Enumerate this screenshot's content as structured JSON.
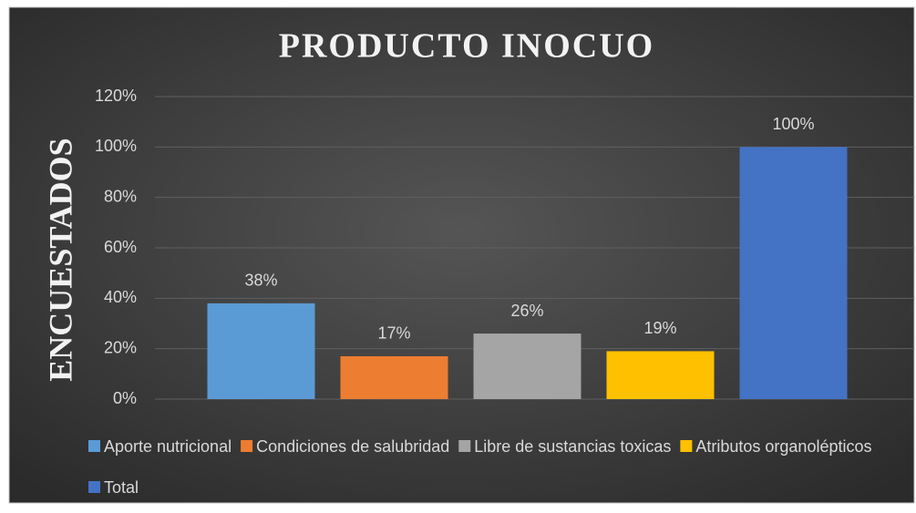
{
  "chart_data": {
    "type": "bar",
    "title": "PRODUCTO INOCUO",
    "y_label": "ENCUESTADOS",
    "series": [
      {
        "name": "Aporte nutricional",
        "color": "#5b9bd5",
        "values": [
          38
        ],
        "value_labels": [
          "38%"
        ]
      },
      {
        "name": "Condiciones de salubridad",
        "color": "#ed7d31",
        "values": [
          17
        ],
        "value_labels": [
          "17%"
        ]
      },
      {
        "name": "Libre de sustancias toxicas",
        "color": "#a5a5a5",
        "values": [
          26
        ],
        "value_labels": [
          "26%"
        ]
      },
      {
        "name": "Atributos organolépticos",
        "color": "#ffc000",
        "values": [
          19
        ],
        "value_labels": [
          "19%"
        ]
      },
      {
        "name": "Total",
        "color": "#4472c4",
        "values": [
          100
        ],
        "value_labels": [
          "100%"
        ]
      }
    ],
    "ylim": [
      0,
      120
    ],
    "yticks": [
      {
        "value": 0,
        "label": "0%"
      },
      {
        "value": 20,
        "label": "20%"
      },
      {
        "value": 40,
        "label": "40%"
      },
      {
        "value": 60,
        "label": "60%"
      },
      {
        "value": 80,
        "label": "80%"
      },
      {
        "value": 100,
        "label": "100%"
      },
      {
        "value": 120,
        "label": "120%"
      }
    ],
    "grid": true,
    "legend": "bottom"
  }
}
